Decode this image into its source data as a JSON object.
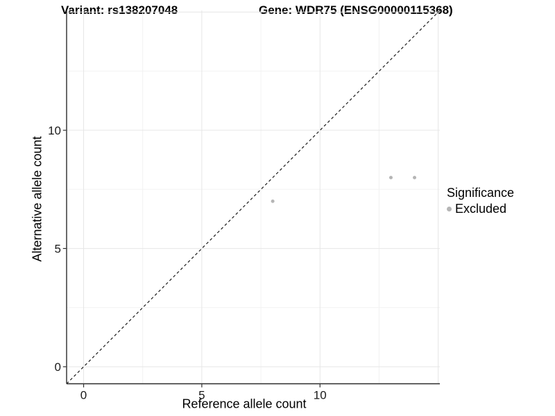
{
  "chart_data": {
    "type": "scatter",
    "title_left": "Variant: rs138207048",
    "title_right": "Gene: WDR75 (ENSG00000115368)",
    "xlabel": "Reference allele count",
    "ylabel": "Alternative allele count",
    "xlim": [
      -0.72,
      15.07
    ],
    "ylim": [
      -0.72,
      15.07
    ],
    "x_ticks": [
      0,
      5,
      10
    ],
    "y_ticks": [
      0,
      5,
      10
    ],
    "x_grid_major": [
      0,
      5,
      10,
      15
    ],
    "x_grid_minor": [
      2.5,
      7.5,
      12.5
    ],
    "y_grid_major": [
      0,
      5,
      10,
      15
    ],
    "y_grid_minor": [
      2.5,
      7.5,
      12.5
    ],
    "grid": true,
    "reference_line": {
      "type": "identity",
      "equation": "y = x",
      "style": "dashed",
      "color": "#1a1a1a"
    },
    "series": [
      {
        "name": "Excluded",
        "color": "#b5b5b5",
        "points": [
          [
            8,
            7
          ],
          [
            13,
            8
          ],
          [
            14,
            8
          ]
        ]
      }
    ],
    "legend": {
      "position": "right",
      "title": "Significance",
      "items": [
        {
          "label": "Excluded",
          "color": "#b5b5b5"
        }
      ]
    }
  },
  "colors": {
    "background": "#ffffff",
    "grid_major": "#e6e6e6",
    "grid_minor": "#f2f2f2",
    "axis_line": "#2b2b2b",
    "tick_text": "#1a1a1a",
    "title_text": "#000000",
    "point": "#b5b5b5"
  }
}
